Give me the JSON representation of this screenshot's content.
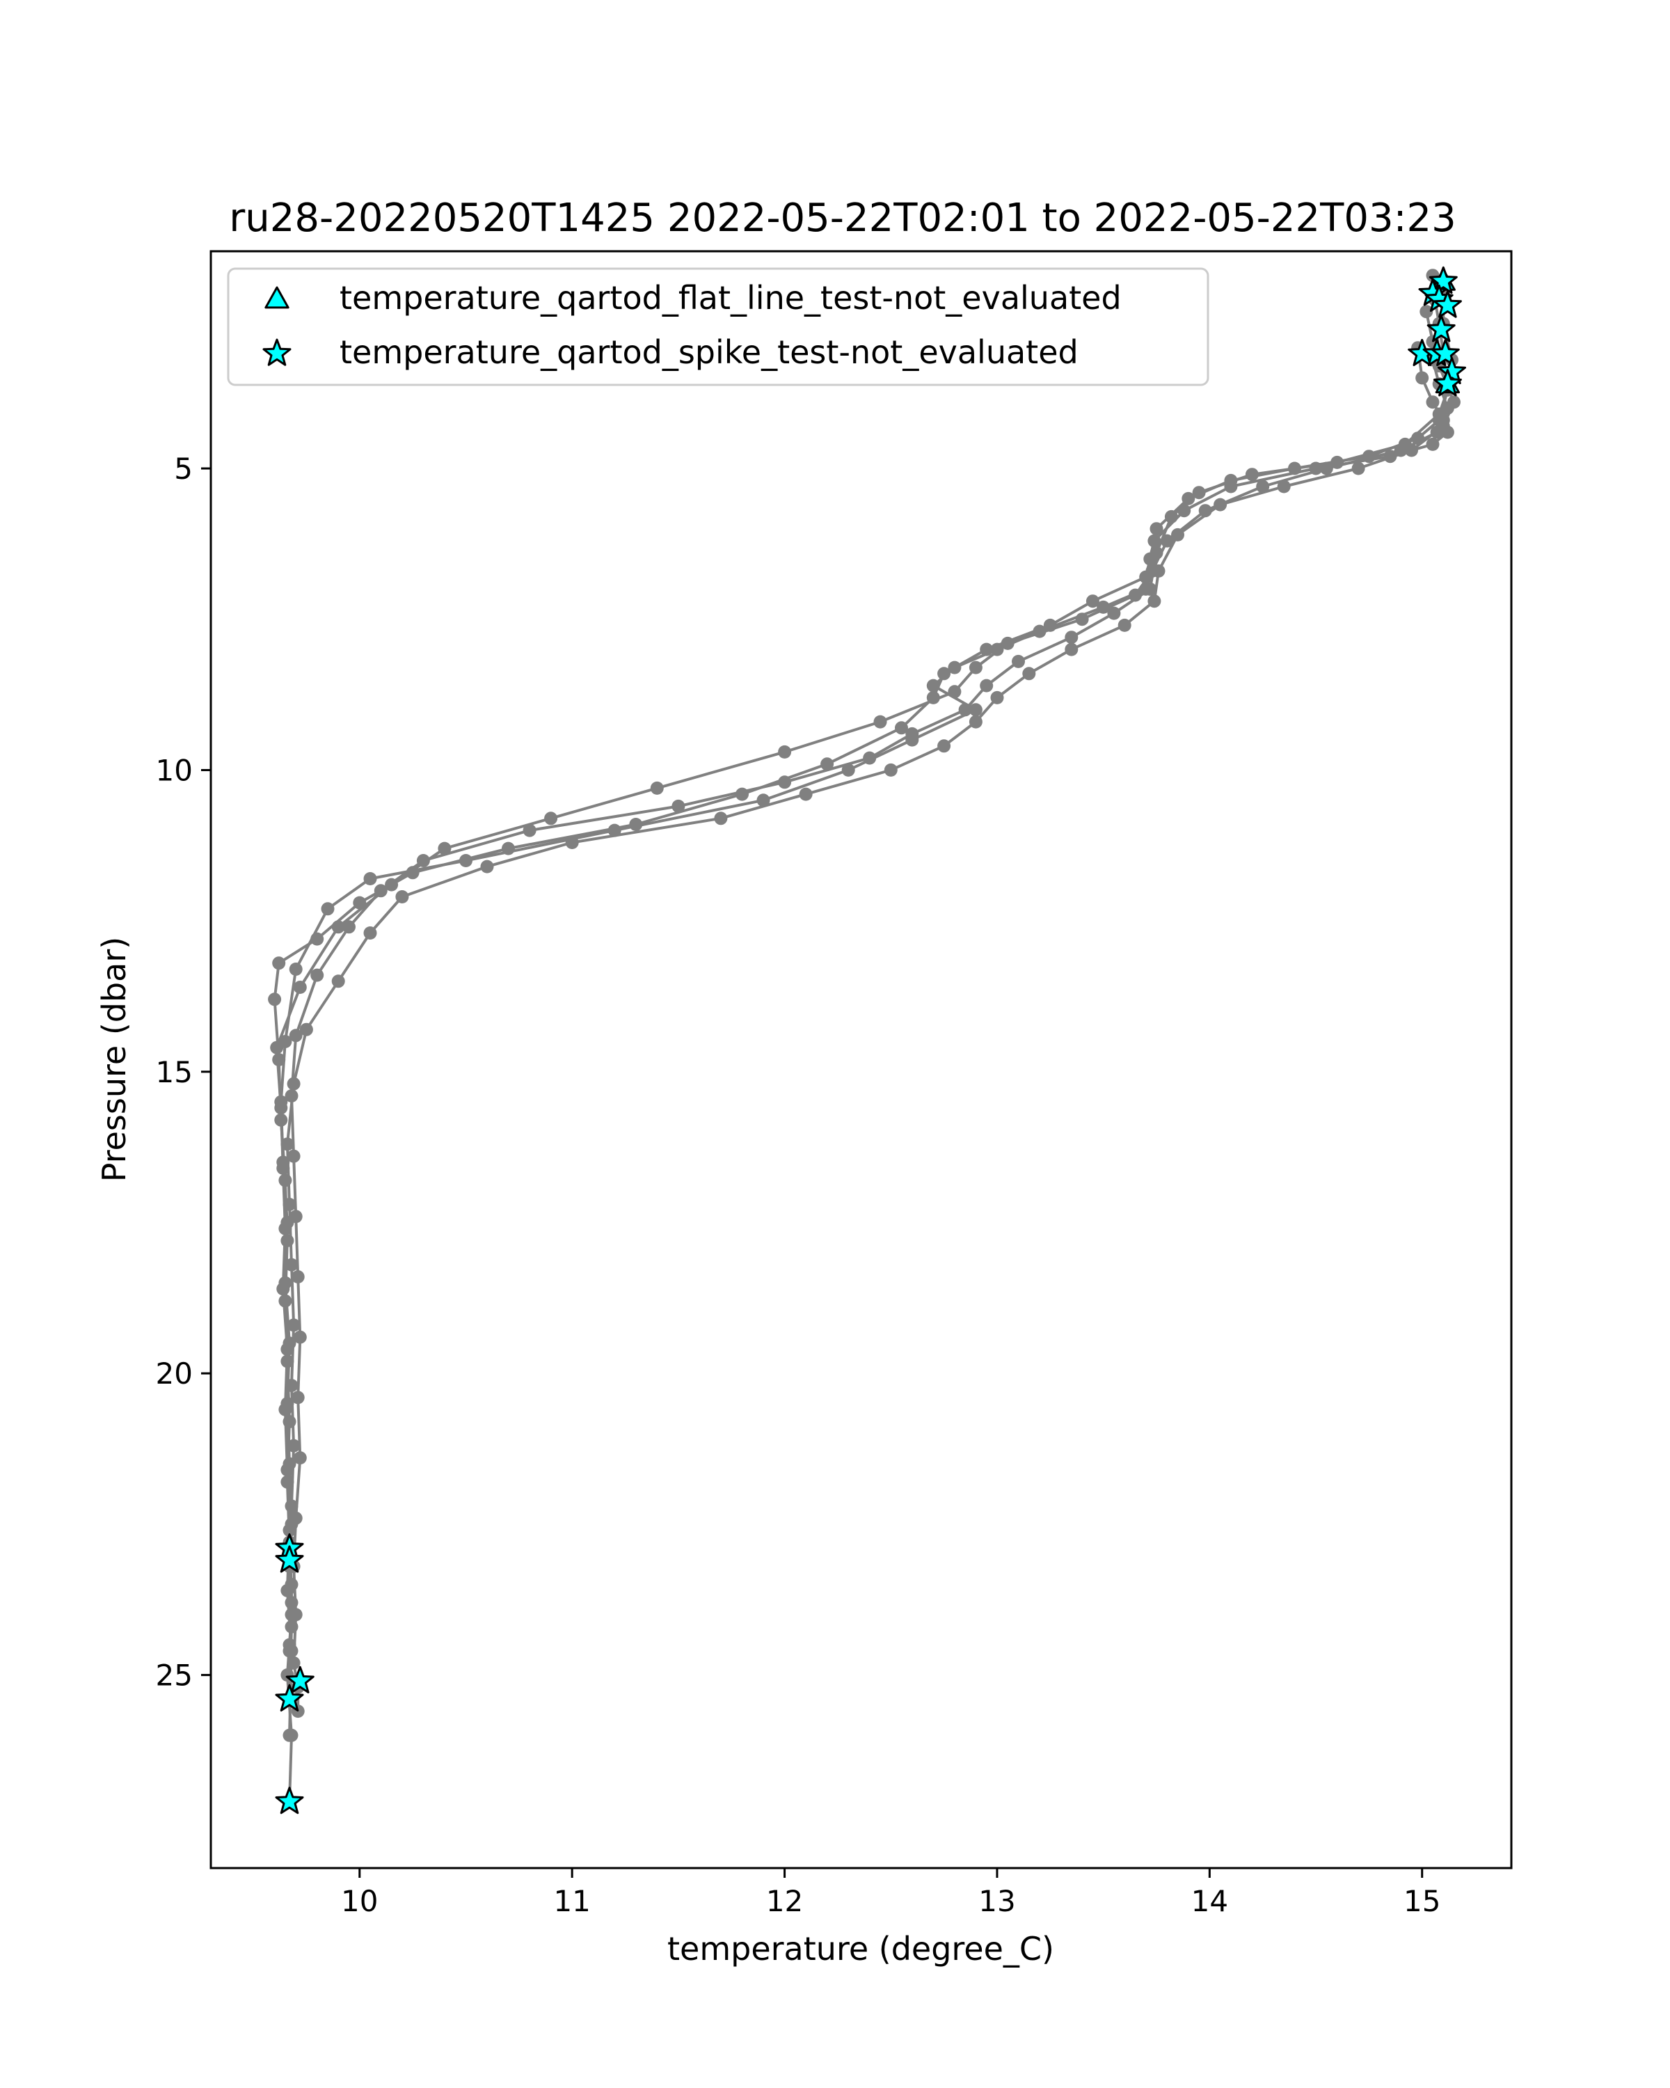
{
  "chart_data": {
    "type": "line",
    "title": "ru28-20220520T1425 2022-05-22T02:01 to 2022-05-22T03:23",
    "xlabel": "temperature (degree_C)",
    "ylabel": "Pressure (dbar)",
    "xlim": [
      9.3,
      15.42
    ],
    "ylim": [
      28.2,
      1.4
    ],
    "y_inverted": true,
    "xticks": [
      10,
      11,
      12,
      13,
      14,
      15
    ],
    "yticks": [
      5,
      10,
      15,
      20,
      25
    ],
    "grid": false,
    "legend_position": "top-left",
    "colors": {
      "profile": "#808080",
      "flag_fill": "#00FFFF",
      "flag_edge": "#000000"
    },
    "profiles": [
      {
        "temperature": [
          15.05,
          15.06,
          15.08,
          15.1,
          15.12,
          15.08,
          14.98,
          14.75,
          14.4,
          14.1,
          13.9,
          13.75,
          13.72,
          13.7,
          13.5,
          13.2,
          13.0,
          12.8,
          12.7,
          12.9,
          12.6,
          12.3,
          11.9,
          11.2,
          10.5,
          10.05,
          9.85,
          9.7,
          9.65,
          9.63,
          9.64,
          9.66,
          9.65,
          9.67,
          9.66,
          9.67,
          9.68,
          9.67,
          9.68,
          9.68,
          9.67,
          9.66,
          9.68,
          9.67
        ],
        "pressure": [
          1.8,
          2.2,
          2.6,
          3.1,
          3.7,
          4.2,
          4.5,
          4.8,
          5.0,
          5.2,
          5.5,
          6.0,
          6.5,
          7.0,
          7.3,
          7.7,
          8.0,
          8.3,
          8.6,
          9.0,
          9.5,
          10.0,
          10.5,
          11.0,
          11.5,
          11.8,
          12.3,
          13.3,
          14.5,
          15.5,
          16.5,
          17.5,
          18.5,
          19.5,
          20.5,
          21.5,
          22.5,
          23.0,
          23.5,
          24.0,
          24.5,
          25.0,
          26.0,
          27.1
        ]
      },
      {
        "temperature": [
          15.1,
          15.1,
          15.14,
          15.13,
          15.08,
          14.92,
          14.6,
          14.2,
          13.95,
          13.82,
          13.75,
          13.72,
          13.55,
          13.35,
          13.1,
          12.95,
          12.85,
          12.6,
          12.4,
          12.0,
          11.5,
          10.8,
          10.3,
          10.1,
          9.95,
          9.8,
          9.7,
          9.68,
          9.69,
          9.7,
          9.71,
          9.72,
          9.71,
          9.72,
          9.7,
          9.69,
          9.7,
          9.69,
          9.71,
          9.71
        ],
        "pressure": [
          2.1,
          2.6,
          3.2,
          3.6,
          4.1,
          4.6,
          4.9,
          5.1,
          5.4,
          5.8,
          6.4,
          7.0,
          7.4,
          7.8,
          8.2,
          8.6,
          9.0,
          9.4,
          9.8,
          10.2,
          10.6,
          11.0,
          11.5,
          12.0,
          12.6,
          13.4,
          14.4,
          15.4,
          16.4,
          17.4,
          18.4,
          19.4,
          20.4,
          21.4,
          22.4,
          23.2,
          24.0,
          24.8,
          25.2,
          25.6
        ]
      },
      {
        "temperature": [
          15.02,
          15.05,
          15.08,
          15.15,
          15.1,
          14.95,
          14.7,
          14.35,
          14.05,
          13.85,
          13.76,
          13.74,
          13.6,
          13.35,
          13.15,
          13.0,
          12.9,
          12.75,
          12.5,
          12.1,
          11.7,
          11.0,
          10.6,
          10.2,
          10.05,
          9.9,
          9.75,
          9.69,
          9.66,
          9.67,
          9.68,
          9.69,
          9.68,
          9.69,
          9.68,
          9.67,
          9.68,
          9.67
        ],
        "pressure": [
          2.4,
          2.9,
          3.3,
          3.9,
          4.3,
          4.7,
          5.0,
          5.3,
          5.6,
          6.1,
          6.7,
          7.2,
          7.6,
          8.0,
          8.4,
          8.8,
          9.2,
          9.6,
          10.0,
          10.4,
          10.8,
          11.2,
          11.6,
          12.1,
          12.7,
          13.5,
          14.3,
          15.2,
          16.2,
          17.2,
          18.2,
          19.2,
          20.2,
          21.2,
          22.2,
          23.2,
          24.2,
          25.4
        ]
      },
      {
        "temperature": [
          14.98,
          15.0,
          15.05,
          15.1,
          15.12,
          15.05,
          14.85,
          14.5,
          14.1,
          13.88,
          13.74,
          13.7,
          13.45,
          13.25,
          12.95,
          12.75,
          12.7,
          12.55,
          12.2,
          11.8,
          11.3,
          10.7,
          10.25,
          10.0,
          9.8,
          9.62,
          9.6,
          9.62,
          9.63,
          9.65,
          9.66,
          9.65,
          9.66,
          9.67,
          9.66,
          9.67,
          9.68,
          9.67
        ],
        "pressure": [
          3.0,
          3.5,
          3.9,
          4.2,
          4.4,
          4.6,
          4.8,
          5.0,
          5.3,
          5.7,
          6.2,
          6.8,
          7.2,
          7.6,
          8.0,
          8.4,
          8.8,
          9.3,
          9.9,
          10.4,
          10.9,
          11.3,
          11.7,
          12.2,
          12.8,
          13.2,
          13.8,
          14.8,
          15.8,
          16.8,
          17.8,
          18.8,
          19.8,
          20.8,
          21.8,
          22.8,
          23.8,
          24.6
        ]
      },
      {
        "temperature": [
          15.05,
          15.08,
          15.12,
          15.07,
          14.9,
          14.55,
          14.25,
          13.98,
          13.8,
          13.73,
          13.65,
          13.4,
          13.05,
          12.9,
          12.8,
          12.45,
          12.0,
          11.4,
          10.9,
          10.4,
          10.15,
          9.9,
          9.72,
          9.61,
          9.63,
          9.64,
          9.65,
          9.64,
          9.66,
          9.65,
          9.66,
          9.67,
          9.66,
          9.68,
          9.67
        ],
        "pressure": [
          3.2,
          3.6,
          4.0,
          4.4,
          4.7,
          5.0,
          5.3,
          5.7,
          6.2,
          6.7,
          7.1,
          7.5,
          7.9,
          8.3,
          8.7,
          9.2,
          9.7,
          10.3,
          10.8,
          11.3,
          11.9,
          12.6,
          13.6,
          14.6,
          15.6,
          16.6,
          17.6,
          18.6,
          19.6,
          20.6,
          21.6,
          22.6,
          23.6,
          24.6,
          26.0
        ]
      }
    ],
    "series": [
      {
        "name": "temperature_qartod_flat_line_test-not_evaluated",
        "marker": "triangle",
        "temperature": [
          15.1,
          15.12
        ],
        "pressure": [
          1.9,
          3.6
        ]
      },
      {
        "name": "temperature_qartod_spike_test-not_evaluated",
        "marker": "star",
        "temperature": [
          15.1,
          15.05,
          15.08,
          15.12,
          15.09,
          15.0,
          15.07,
          15.11,
          15.14,
          15.12,
          9.67,
          9.67,
          9.72,
          9.67,
          9.67
        ],
        "pressure": [
          1.9,
          2.1,
          2.2,
          2.3,
          2.7,
          3.1,
          3.1,
          3.1,
          3.4,
          3.6,
          22.9,
          23.1,
          25.1,
          25.4,
          27.1
        ]
      }
    ]
  }
}
